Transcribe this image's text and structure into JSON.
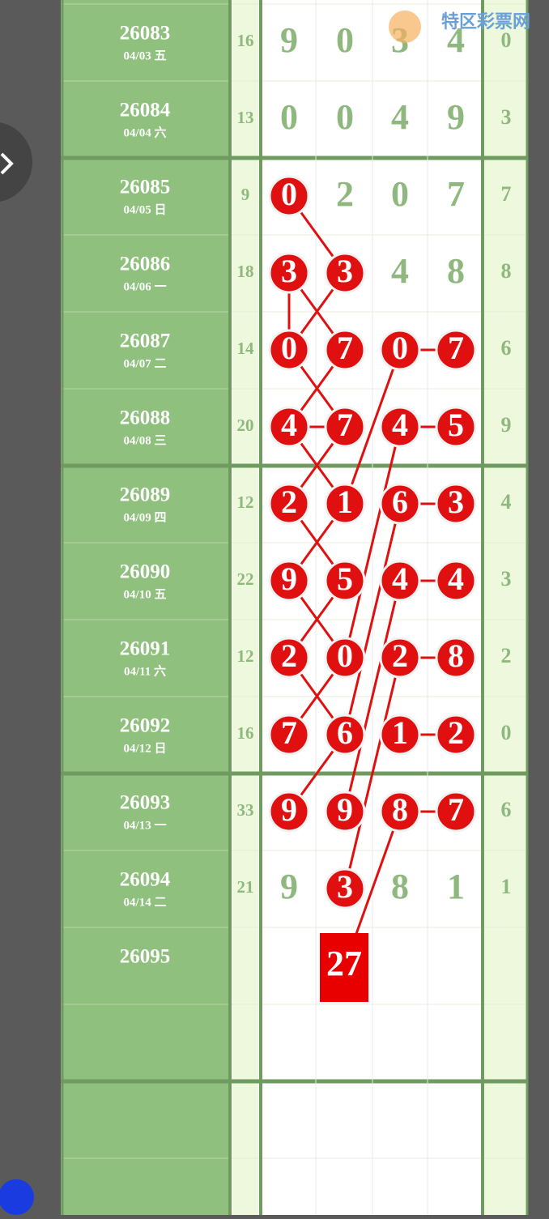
{
  "header": {
    "logo": "特区彩票网"
  },
  "table": {
    "rows": [
      {
        "issue": "26083",
        "date": "04/03 五",
        "sum": 16,
        "digits": [
          9,
          0,
          3,
          4
        ],
        "tail": 0
      },
      {
        "issue": "26084",
        "date": "04/04 六",
        "sum": 13,
        "digits": [
          0,
          0,
          4,
          9
        ],
        "tail": 3
      },
      {
        "issue": "26085",
        "date": "04/05 日",
        "sum": 9,
        "digits": [
          0,
          2,
          0,
          7
        ],
        "tail": 7
      },
      {
        "issue": "26086",
        "date": "04/06 一",
        "sum": 18,
        "digits": [
          3,
          3,
          4,
          8
        ],
        "tail": 8
      },
      {
        "issue": "26087",
        "date": "04/07 二",
        "sum": 14,
        "digits": [
          0,
          7,
          0,
          7
        ],
        "tail": 6
      },
      {
        "issue": "26088",
        "date": "04/08 三",
        "sum": 20,
        "digits": [
          4,
          7,
          4,
          5
        ],
        "tail": 9
      },
      {
        "issue": "26089",
        "date": "04/09 四",
        "sum": 12,
        "digits": [
          2,
          1,
          6,
          3
        ],
        "tail": 4
      },
      {
        "issue": "26090",
        "date": "04/10 五",
        "sum": 22,
        "digits": [
          9,
          5,
          4,
          4
        ],
        "tail": 3
      },
      {
        "issue": "26091",
        "date": "04/11 六",
        "sum": 12,
        "digits": [
          2,
          0,
          2,
          8
        ],
        "tail": 2
      },
      {
        "issue": "26092",
        "date": "04/12 日",
        "sum": 16,
        "digits": [
          7,
          6,
          1,
          2
        ],
        "tail": 0
      },
      {
        "issue": "26093",
        "date": "04/13 一",
        "sum": 33,
        "digits": [
          9,
          9,
          8,
          7
        ],
        "tail": 6
      },
      {
        "issue": "26094",
        "date": "04/14 二",
        "sum": 21,
        "digits": [
          9,
          3,
          8,
          1
        ],
        "tail": 1
      }
    ],
    "next": {
      "issue": "26095",
      "prediction": 27
    }
  }
}
